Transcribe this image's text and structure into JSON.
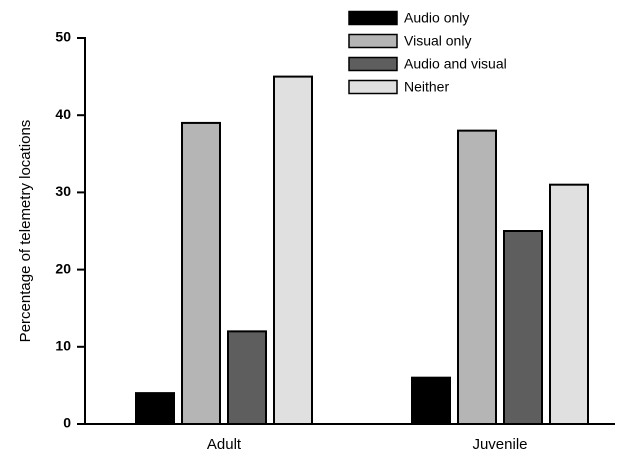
{
  "chart_data": {
    "type": "bar",
    "categories": [
      "Adult",
      "Juvenile"
    ],
    "series": [
      {
        "name": "Audio only",
        "values": [
          4,
          6
        ],
        "color": "#000000"
      },
      {
        "name": "Visual only",
        "values": [
          39,
          38
        ],
        "color": "#b5b5b5"
      },
      {
        "name": "Audio and visual",
        "values": [
          12,
          25
        ],
        "color": "#5e5e5e"
      },
      {
        "name": "Neither",
        "values": [
          45,
          31
        ],
        "color": "#e0e0e0"
      }
    ],
    "ylabel": "Percentage of telemetry locations",
    "ylim": [
      0,
      50
    ],
    "yticks": [
      "0",
      "10",
      "20",
      "30",
      "40",
      "50"
    ],
    "grid": false,
    "legend_position": "top-right"
  }
}
